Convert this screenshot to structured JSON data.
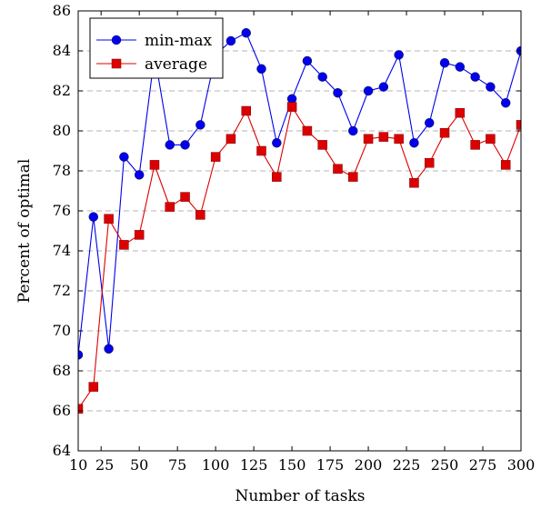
{
  "chart_data": {
    "type": "line",
    "title": "",
    "xlabel": "Number of tasks",
    "ylabel": "Percent of optimal",
    "xlim": [
      10,
      300
    ],
    "ylim": [
      64,
      86
    ],
    "x_ticks": [
      10,
      25,
      50,
      75,
      100,
      125,
      150,
      175,
      200,
      225,
      250,
      275,
      300
    ],
    "y_ticks": [
      64,
      66,
      68,
      70,
      72,
      74,
      76,
      78,
      80,
      82,
      84,
      86
    ],
    "grid": "horizontal dashed",
    "legend_position": "top-left",
    "x": [
      10,
      20,
      30,
      40,
      50,
      60,
      70,
      80,
      90,
      100,
      110,
      120,
      130,
      140,
      150,
      160,
      170,
      180,
      190,
      200,
      210,
      220,
      230,
      240,
      250,
      260,
      270,
      280,
      290,
      300
    ],
    "series": [
      {
        "name": "min-max",
        "color": "#0000ee",
        "marker": "circle",
        "values": [
          68.8,
          75.7,
          69.1,
          78.7,
          77.8,
          83.8,
          79.3,
          79.3,
          80.3,
          83.8,
          84.5,
          84.9,
          83.1,
          79.4,
          81.6,
          83.5,
          82.7,
          81.9,
          80.0,
          82.0,
          82.2,
          83.8,
          79.4,
          80.4,
          83.4,
          83.2,
          82.7,
          82.2,
          81.4,
          84.0
        ]
      },
      {
        "name": "average",
        "color": "#dd0000",
        "marker": "square",
        "values": [
          66.1,
          67.2,
          75.6,
          74.3,
          74.8,
          78.3,
          76.2,
          76.7,
          75.8,
          78.7,
          79.6,
          81.0,
          79.0,
          77.7,
          81.2,
          80.0,
          79.3,
          78.1,
          77.7,
          79.6,
          79.7,
          79.6,
          77.4,
          78.4,
          79.9,
          80.9,
          79.3,
          79.6,
          78.3,
          80.3
        ]
      }
    ]
  }
}
